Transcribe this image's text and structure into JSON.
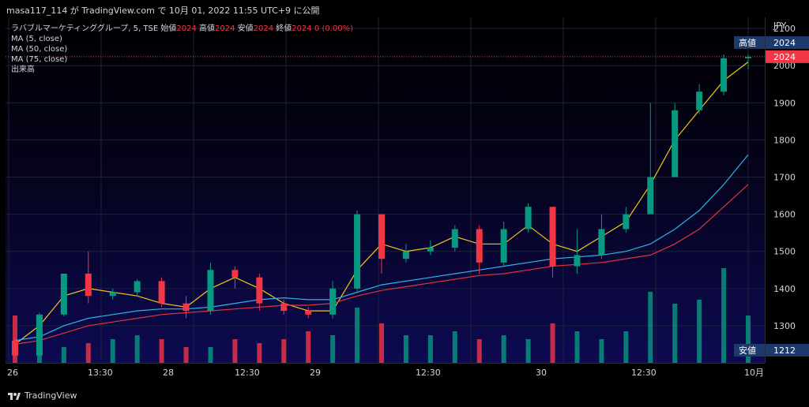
{
  "header": {
    "publish_line": "masa117_114 が TradingView.com で 10月 01, 2022 11:55 UTC+9 に公開"
  },
  "legend": {
    "symbol": "ラバブルマーケティンググループ, 5, TSE",
    "open_label": "始値",
    "open_value": "2024",
    "high_label": "高値",
    "high_value": "2024",
    "low_label": "安値",
    "low_value": "2024",
    "close_label": "終値",
    "close_value": "2024",
    "change": "0 (0.00%)",
    "indicators": [
      "MA (5, close)",
      "MA (50, close)",
      "MA (75, close)",
      "出来高"
    ]
  },
  "price_axis": {
    "currency": "JPY",
    "ticks": [
      "2100",
      "2000",
      "1900",
      "1800",
      "1700",
      "1600",
      "1500",
      "1400",
      "1300"
    ],
    "high_tag_label": "高値",
    "high_tag_value": "2024",
    "last_tag_value": "2024",
    "low_tag_label": "安値",
    "low_tag_value": "1212"
  },
  "time_axis": {
    "labels": [
      "26",
      "13:30",
      "28",
      "12:30",
      "29",
      "12:30",
      "30",
      "12:30",
      "10月"
    ]
  },
  "footer": {
    "brand": "TradingView",
    "logo_icon": "tradingview-logo-icon"
  },
  "colors": {
    "up": "#089981",
    "down": "#f23645",
    "ma5": "#f0c419",
    "ma50": "#2fb4e6",
    "ma75": "#e0343c",
    "grid": "#1e2235"
  },
  "chart_data": {
    "type": "candlestick",
    "title": "",
    "interval": "5",
    "exchange": "TSE",
    "ylim": [
      1200,
      2130
    ],
    "candles_approx": [
      [
        1260,
        1220,
        1270,
        1215
      ],
      [
        1220,
        1330,
        1335,
        1215
      ],
      [
        1330,
        1440,
        1440,
        1325
      ],
      [
        1440,
        1380,
        1500,
        1360
      ],
      [
        1380,
        1390,
        1400,
        1370
      ],
      [
        1390,
        1420,
        1425,
        1380
      ],
      [
        1420,
        1360,
        1430,
        1350
      ],
      [
        1360,
        1340,
        1380,
        1320
      ],
      [
        1340,
        1450,
        1470,
        1330
      ],
      [
        1450,
        1430,
        1460,
        1400
      ],
      [
        1430,
        1360,
        1440,
        1340
      ],
      [
        1360,
        1340,
        1370,
        1330
      ],
      [
        1340,
        1330,
        1350,
        1320
      ],
      [
        1330,
        1400,
        1420,
        1320
      ],
      [
        1400,
        1600,
        1610,
        1390
      ],
      [
        1600,
        1480,
        1600,
        1440
      ],
      [
        1480,
        1500,
        1520,
        1470
      ],
      [
        1500,
        1510,
        1530,
        1490
      ],
      [
        1510,
        1560,
        1570,
        1500
      ],
      [
        1560,
        1470,
        1570,
        1440
      ],
      [
        1470,
        1560,
        1580,
        1460
      ],
      [
        1560,
        1620,
        1630,
        1550
      ],
      [
        1620,
        1460,
        1620,
        1430
      ],
      [
        1460,
        1490,
        1560,
        1440
      ],
      [
        1490,
        1560,
        1600,
        1480
      ],
      [
        1560,
        1600,
        1620,
        1550
      ],
      [
        1600,
        1700,
        1900,
        1600
      ],
      [
        1700,
        1880,
        1900,
        1720
      ],
      [
        1880,
        1930,
        1950,
        1870
      ],
      [
        1930,
        2020,
        2030,
        1920
      ],
      [
        2020,
        2024,
        2030,
        1990
      ]
    ],
    "volume_approx": [
      60,
      30,
      20,
      25,
      30,
      35,
      30,
      20,
      20,
      30,
      25,
      30,
      40,
      35,
      70,
      50,
      35,
      35,
      40,
      30,
      35,
      30,
      50,
      40,
      30,
      40,
      90,
      75,
      80,
      120,
      60
    ],
    "series": [
      {
        "name": "MA (5, close)",
        "values": [
          1250,
          1300,
          1380,
          1400,
          1390,
          1380,
          1360,
          1350,
          1400,
          1430,
          1400,
          1360,
          1340,
          1340,
          1450,
          1520,
          1500,
          1510,
          1540,
          1520,
          1520,
          1570,
          1520,
          1500,
          1540,
          1580,
          1680,
          1800,
          1880,
          1960,
          2010
        ]
      },
      {
        "name": "MA (50, close)",
        "values": [
          1260,
          1270,
          1300,
          1320,
          1330,
          1340,
          1345,
          1345,
          1350,
          1360,
          1370,
          1375,
          1370,
          1370,
          1390,
          1410,
          1420,
          1430,
          1440,
          1450,
          1460,
          1470,
          1480,
          1485,
          1490,
          1500,
          1520,
          1560,
          1610,
          1680,
          1760
        ]
      },
      {
        "name": "MA (75, close)",
        "values": [
          1250,
          1260,
          1280,
          1300,
          1310,
          1320,
          1330,
          1335,
          1340,
          1345,
          1350,
          1355,
          1355,
          1360,
          1380,
          1395,
          1405,
          1415,
          1425,
          1435,
          1440,
          1450,
          1460,
          1465,
          1470,
          1480,
          1490,
          1520,
          1560,
          1620,
          1680
        ]
      }
    ]
  }
}
